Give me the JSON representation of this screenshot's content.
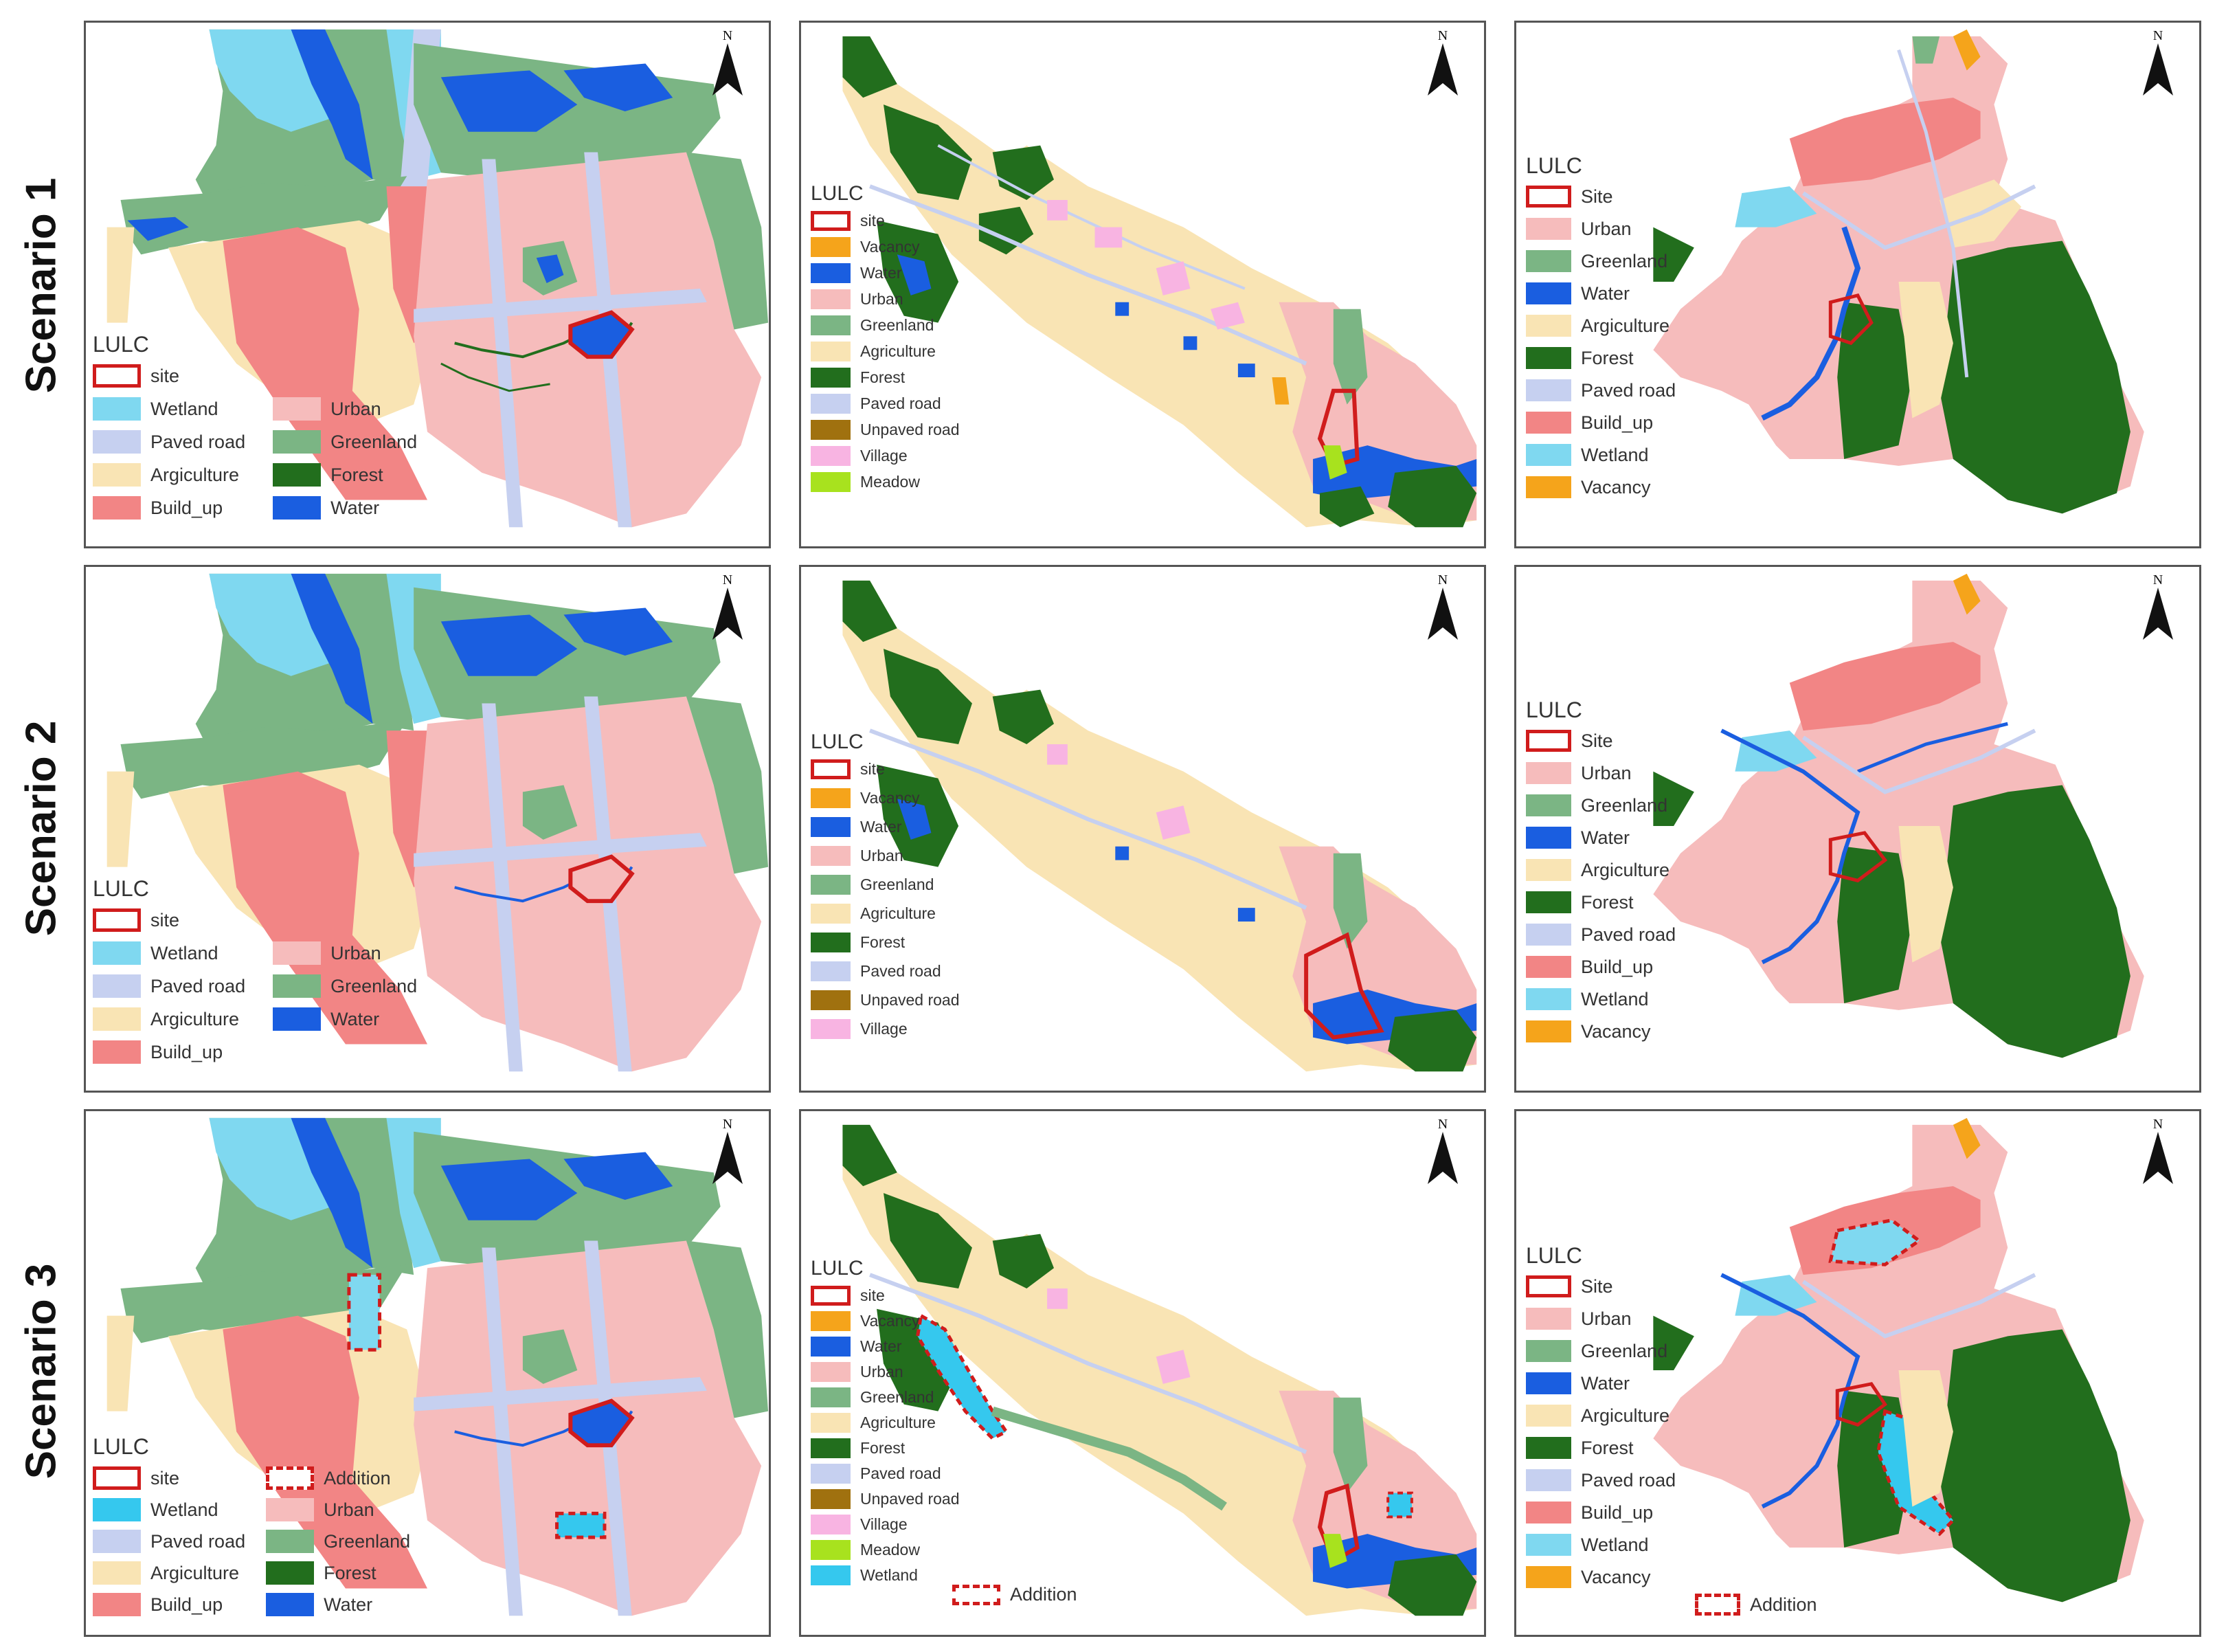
{
  "scenario_labels": [
    "Scenario 1",
    "Scenario 2",
    "Scenario 3"
  ],
  "north_label": "N",
  "legend_title": "LULC",
  "colors": {
    "site": "#d01c1c",
    "wetland": "#7fd8f0",
    "paved_road": "#c6d0f0",
    "agriculture": "#f9e4b4",
    "build_up": "#f28585",
    "urban": "#f6bcbc",
    "greenland": "#7bb584",
    "forest": "#226e1d",
    "water": "#1a5ee0",
    "vacancy": "#f5a41b",
    "unpaved_road": "#a0710f",
    "village": "#f8b4e2",
    "meadow": "#a8e21e",
    "wetland_bright": "#35c8ee"
  },
  "legends": {
    "s1_left": {
      "col1": [
        "site",
        "Wetland",
        "Paved road",
        "Argiculture",
        "Build_up"
      ],
      "col2": [
        "",
        "Urban",
        "Greenland",
        "Forest",
        "Water"
      ]
    },
    "s2_left": {
      "col1": [
        "site",
        "Wetland",
        "Paved road",
        "Argiculture",
        "Build_up"
      ],
      "col2": [
        "",
        "Urban",
        "Greenland",
        "Water"
      ]
    },
    "s3_left": {
      "col1": [
        "site",
        "Wetland",
        "Paved road",
        "Argiculture",
        "Build_up"
      ],
      "col2": [
        "Addition",
        "Urban",
        "Greenland",
        "Forest",
        "Water"
      ]
    },
    "s1_mid": [
      "site",
      "Vacancy",
      "Water",
      "Urban",
      "Greenland",
      "Agriculture",
      "Forest",
      "Paved road",
      "Unpaved road",
      "Village",
      "Meadow"
    ],
    "s2_mid": [
      "site",
      "Vacancy",
      "Water",
      "Urban",
      "Greenland",
      "Agriculture",
      "Forest",
      "Paved road",
      "Unpaved road",
      "Village"
    ],
    "s3_mid": [
      "site",
      "Vacancy",
      "Water",
      "Urban",
      "Greenland",
      "Agriculture",
      "Forest",
      "Paved road",
      "Unpaved road",
      "Village",
      "Meadow",
      "Wetland"
    ],
    "s3_mid_extra": "Addition",
    "right": [
      "Site",
      "Urban",
      "Greenland",
      "Water",
      "Argiculture",
      "Forest",
      "Paved road",
      "Build_up",
      "Wetland",
      "Vacancy"
    ],
    "s3_right_extra": "Addition"
  }
}
